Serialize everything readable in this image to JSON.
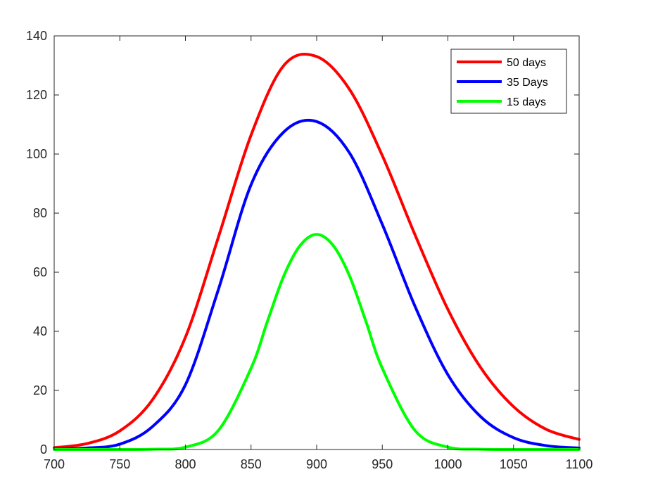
{
  "chart_data": {
    "type": "line",
    "title": "",
    "xlabel": "",
    "ylabel": "",
    "xlim": [
      700,
      1100
    ],
    "ylim": [
      0,
      140
    ],
    "xticks": [
      700,
      750,
      800,
      850,
      900,
      950,
      1000,
      1050,
      1100
    ],
    "yticks": [
      0,
      20,
      40,
      60,
      80,
      100,
      120,
      140
    ],
    "grid": false,
    "legend_position": "top-right",
    "series": [
      {
        "name": "50 days",
        "color": "#ff0000",
        "x": [
          700,
          725,
          750,
          775,
          800,
          825,
          850,
          875,
          900,
          925,
          950,
          975,
          1000,
          1025,
          1050,
          1075,
          1100
        ],
        "y": [
          0.6,
          2,
          6.3,
          16.9,
          38,
          71.7,
          106.4,
          130,
          133,
          121.9,
          99.5,
          72.6,
          47.4,
          27.7,
          14.5,
          6.8,
          3.4
        ]
      },
      {
        "name": "35 Days",
        "color": "#0000ff",
        "x": [
          700,
          725,
          750,
          775,
          800,
          825,
          850,
          875,
          900,
          925,
          950,
          975,
          1000,
          1025,
          1050,
          1075,
          1100
        ],
        "y": [
          0.1,
          0.5,
          1.8,
          7.8,
          21.9,
          54,
          89.6,
          107.5,
          111,
          100.4,
          76.2,
          48.4,
          25.3,
          11.1,
          4,
          1.3,
          0.5
        ]
      },
      {
        "name": "15 days",
        "color": "#00ff00",
        "x": [
          700,
          725,
          750,
          775,
          800,
          825,
          850,
          862.5,
          875,
          887.5,
          900,
          912.5,
          925,
          937.5,
          950,
          975,
          1000,
          1025,
          1050,
          1075,
          1100
        ],
        "y": [
          0,
          0,
          0,
          0.1,
          0.8,
          6.4,
          27.5,
          43.4,
          58.8,
          69.1,
          72.8,
          69.1,
          58.8,
          43.4,
          27.5,
          6.4,
          0.8,
          0.1,
          0,
          0,
          0
        ]
      }
    ]
  }
}
